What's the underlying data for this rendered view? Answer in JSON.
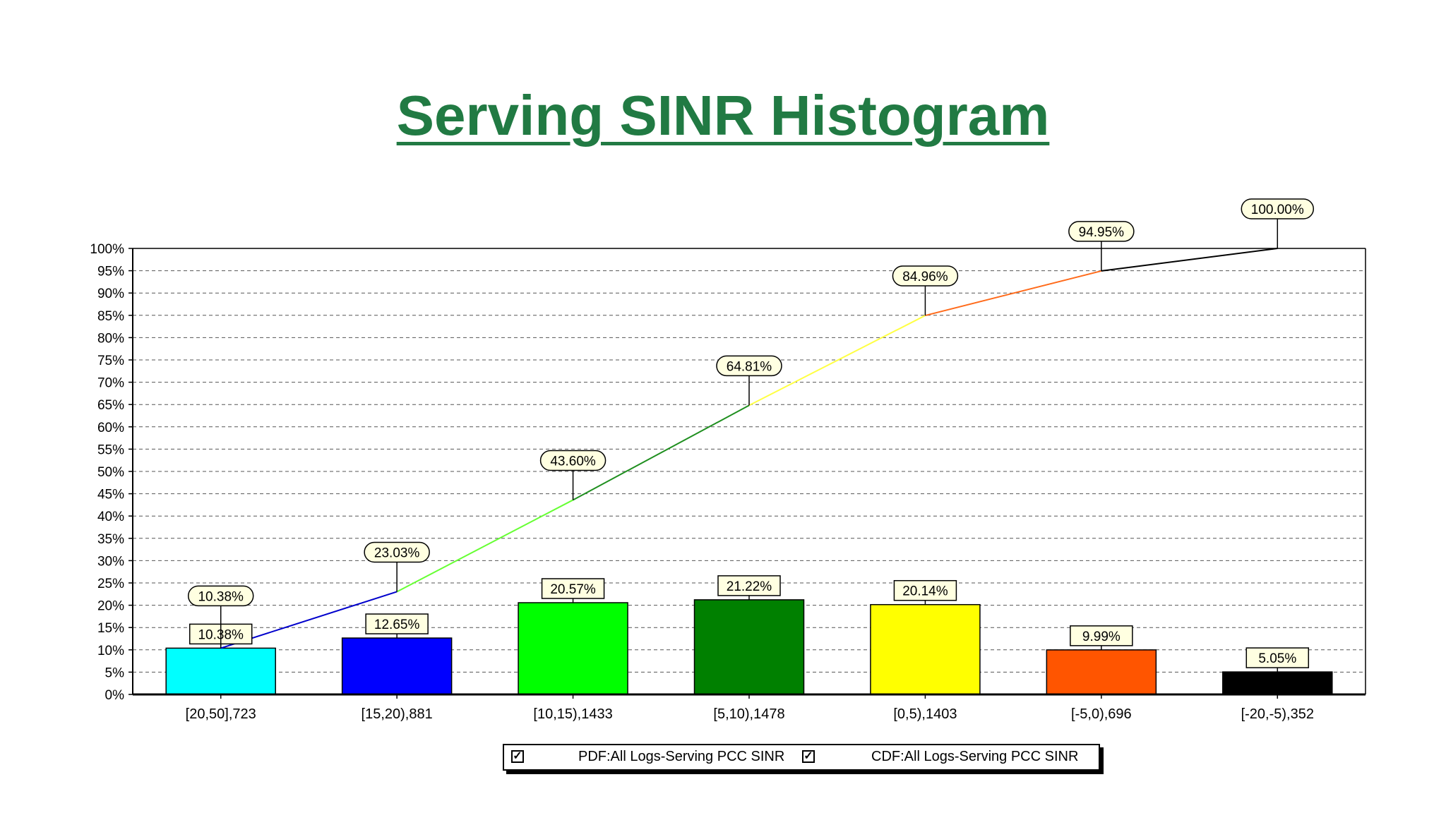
{
  "slide": {
    "title": "Serving SINR Histogram"
  },
  "legend": {
    "items": [
      {
        "label": "PDF:All Logs-Serving PCC SINR",
        "checked": true,
        "check_mark": "✓"
      },
      {
        "label": "CDF:All Logs-Serving PCC SINR",
        "checked": true,
        "check_mark": "✓"
      }
    ]
  },
  "chart_data": {
    "type": "bar",
    "categories": [
      "[20,50],723",
      "[15,20),881",
      "[10,15),1433",
      "[5,10),1478",
      "[0,5),1403",
      "[-5,0),696",
      "[-20,-5),352"
    ],
    "series": [
      {
        "name": "PDF:All Logs-Serving PCC SINR",
        "type": "bar",
        "values": [
          10.38,
          12.65,
          20.57,
          21.22,
          20.14,
          9.99,
          5.05
        ],
        "labels": [
          "10.38%",
          "12.65%",
          "20.57%",
          "21.22%",
          "20.14%",
          "9.99%",
          "5.05%"
        ],
        "colors": [
          "#00ffff",
          "#0000ff",
          "#00ff00",
          "#008000",
          "#ffff00",
          "#ff5500",
          "#000000"
        ]
      },
      {
        "name": "CDF:All Logs-Serving PCC SINR",
        "type": "line",
        "values": [
          10.38,
          23.03,
          43.6,
          64.81,
          84.96,
          94.95,
          100.0
        ],
        "labels": [
          "10.38%",
          "23.03%",
          "43.60%",
          "64.81%",
          "84.96%",
          "94.95%",
          "100.00%"
        ]
      }
    ],
    "yticks": [
      "0%",
      "5%",
      "10%",
      "15%",
      "20%",
      "25%",
      "30%",
      "35%",
      "40%",
      "45%",
      "50%",
      "55%",
      "60%",
      "65%",
      "70%",
      "75%",
      "80%",
      "85%",
      "90%",
      "95%",
      "100%"
    ],
    "ylim": [
      0,
      100
    ],
    "grid": true,
    "legend_position": "bottom"
  }
}
